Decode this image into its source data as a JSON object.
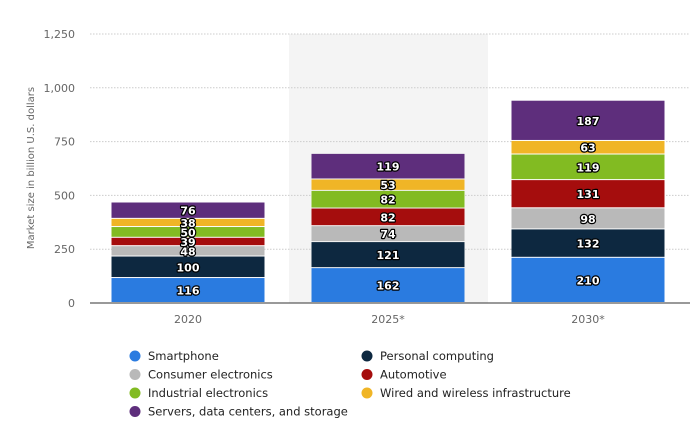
{
  "chart_data": {
    "type": "bar",
    "stacked": true,
    "ylabel": "Market size in billion U.S. dollars",
    "xlabel": "",
    "ylim": [
      0,
      1250
    ],
    "yticks": [
      0,
      250,
      500,
      750,
      1000,
      1250
    ],
    "ytick_labels": [
      "0",
      "250",
      "500",
      "750",
      "1,000",
      "1,250"
    ],
    "grid": true,
    "highlighted_category": "2025*",
    "legend_position": "bottom",
    "categories": [
      "2020",
      "2025*",
      "2030*"
    ],
    "series": [
      {
        "name": "Smartphone",
        "color": "#2a7be0",
        "values": [
          116,
          162,
          210
        ]
      },
      {
        "name": "Personal computing",
        "color": "#0d2840",
        "values": [
          100,
          121,
          132
        ]
      },
      {
        "name": "Consumer electronics",
        "color": "#b9b9b9",
        "values": [
          48,
          74,
          98
        ]
      },
      {
        "name": "Automotive",
        "color": "#a50d0d",
        "values": [
          39,
          82,
          131
        ]
      },
      {
        "name": "Industrial electronics",
        "color": "#82bb22",
        "values": [
          50,
          82,
          119
        ]
      },
      {
        "name": "Wired and wireless infrastructure",
        "color": "#f0b526",
        "values": [
          38,
          53,
          63
        ]
      },
      {
        "name": "Servers, data centers, and storage",
        "color": "#5e2e7c",
        "values": [
          76,
          119,
          187
        ]
      }
    ]
  }
}
